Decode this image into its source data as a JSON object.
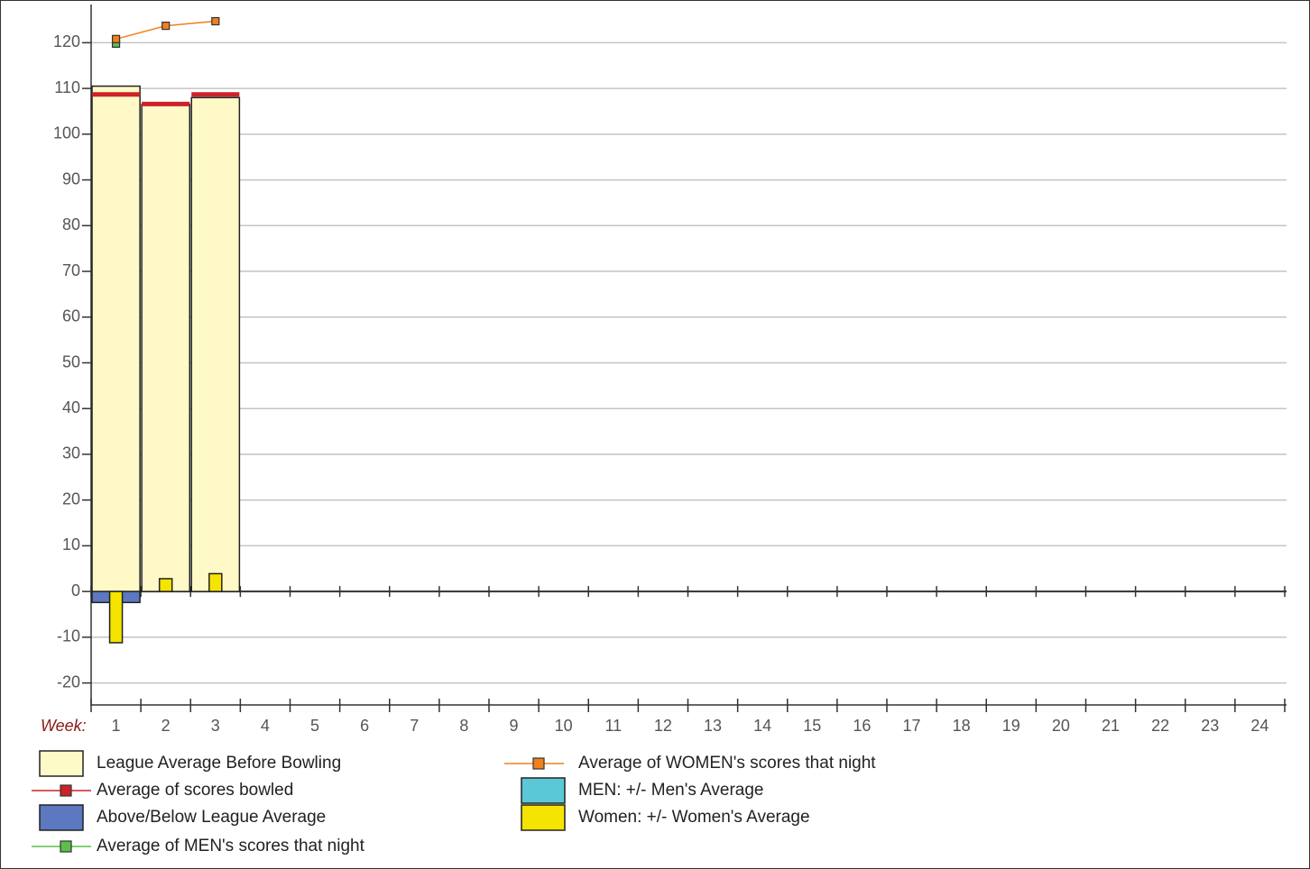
{
  "chart_data": {
    "type": "bowling-combo",
    "x_label": "Week:",
    "categories": [
      "1",
      "2",
      "3",
      "4",
      "5",
      "6",
      "7",
      "8",
      "9",
      "10",
      "11",
      "12",
      "13",
      "14",
      "15",
      "16",
      "17",
      "18",
      "19",
      "20",
      "21",
      "22",
      "23",
      "24"
    ],
    "ylim": [
      -25,
      125
    ],
    "yticks": [
      -20,
      -10,
      0,
      10,
      20,
      30,
      40,
      50,
      60,
      70,
      80,
      90,
      100,
      110,
      120
    ],
    "grid": true,
    "series": [
      {
        "name": "League Average Before Bowling",
        "kind": "wide-bar",
        "color": "#fff9c8",
        "values": [
          110.5,
          106.5,
          108,
          null,
          null,
          null,
          null,
          null,
          null,
          null,
          null,
          null,
          null,
          null,
          null,
          null,
          null,
          null,
          null,
          null,
          null,
          null,
          null,
          null
        ]
      },
      {
        "name": "Average of scores bowled",
        "kind": "level",
        "color": "#cc2228",
        "values": [
          108.7,
          106.6,
          108.7,
          null,
          null,
          null,
          null,
          null,
          null,
          null,
          null,
          null,
          null,
          null,
          null,
          null,
          null,
          null,
          null,
          null,
          null,
          null,
          null,
          null
        ]
      },
      {
        "name": "Above/Below League Average",
        "kind": "wide-bar",
        "color": "#5b78c0",
        "values": [
          -2.4,
          null,
          null,
          null,
          null,
          null,
          null,
          null,
          null,
          null,
          null,
          null,
          null,
          null,
          null,
          null,
          null,
          null,
          null,
          null,
          null,
          null,
          null,
          null
        ]
      },
      {
        "name": "Average of MEN's scores that night",
        "kind": "line",
        "color": "#5cbf4a",
        "values": [
          119.8,
          null,
          null,
          null,
          null,
          null,
          null,
          null,
          null,
          null,
          null,
          null,
          null,
          null,
          null,
          null,
          null,
          null,
          null,
          null,
          null,
          null,
          null,
          null
        ]
      },
      {
        "name": "Average of WOMEN's scores that night",
        "kind": "line",
        "color": "#f0801e",
        "values": [
          120.8,
          123.7,
          124.7,
          null,
          null,
          null,
          null,
          null,
          null,
          null,
          null,
          null,
          null,
          null,
          null,
          null,
          null,
          null,
          null,
          null,
          null,
          null,
          null,
          null
        ]
      },
      {
        "name": "MEN: +/- Men's Average",
        "kind": "narrow-bar",
        "color": "#5bc8d8",
        "values": [
          null,
          null,
          null,
          null,
          null,
          null,
          null,
          null,
          null,
          null,
          null,
          null,
          null,
          null,
          null,
          null,
          null,
          null,
          null,
          null,
          null,
          null,
          null,
          null
        ]
      },
      {
        "name": "Women: +/- Women's Average",
        "kind": "narrow-bar",
        "color": "#f5e400",
        "values": [
          -11.2,
          2.8,
          3.9,
          null,
          null,
          null,
          null,
          null,
          null,
          null,
          null,
          null,
          null,
          null,
          null,
          null,
          null,
          null,
          null,
          null,
          null,
          null,
          null,
          null
        ]
      }
    ]
  }
}
